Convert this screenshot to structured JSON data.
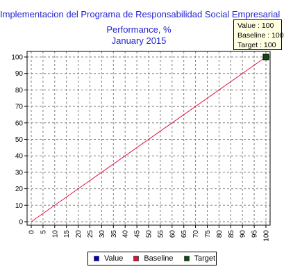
{
  "chart_data": {
    "type": "line",
    "title": "Implementacion del Programa de Responsabilidad Social Empresarial",
    "subtitle": "Performance, %",
    "period": "January 2015",
    "xlabel": "",
    "ylabel": "",
    "xlim": [
      0,
      100
    ],
    "ylim": [
      0,
      104
    ],
    "x_ticks": [
      0,
      5,
      10,
      15,
      20,
      25,
      30,
      35,
      40,
      45,
      50,
      55,
      60,
      65,
      70,
      75,
      80,
      85,
      90,
      95,
      100
    ],
    "y_ticks": [
      0,
      10,
      20,
      30,
      40,
      50,
      60,
      70,
      80,
      90,
      100
    ],
    "grid": true,
    "legend_position": "bottom",
    "series": [
      {
        "name": "Value",
        "color": "#0000cc",
        "x": [],
        "y": []
      },
      {
        "name": "Baseline",
        "color": "#e0103a",
        "x": [
          0,
          100
        ],
        "y": [
          0,
          100
        ]
      },
      {
        "name": "Target",
        "color": "#0b4d0b",
        "x": [
          100
        ],
        "y": [
          100
        ]
      }
    ],
    "tooltip": {
      "value": "Value : 100",
      "baseline": "Baseline : 100",
      "target": "Target : 100"
    }
  }
}
